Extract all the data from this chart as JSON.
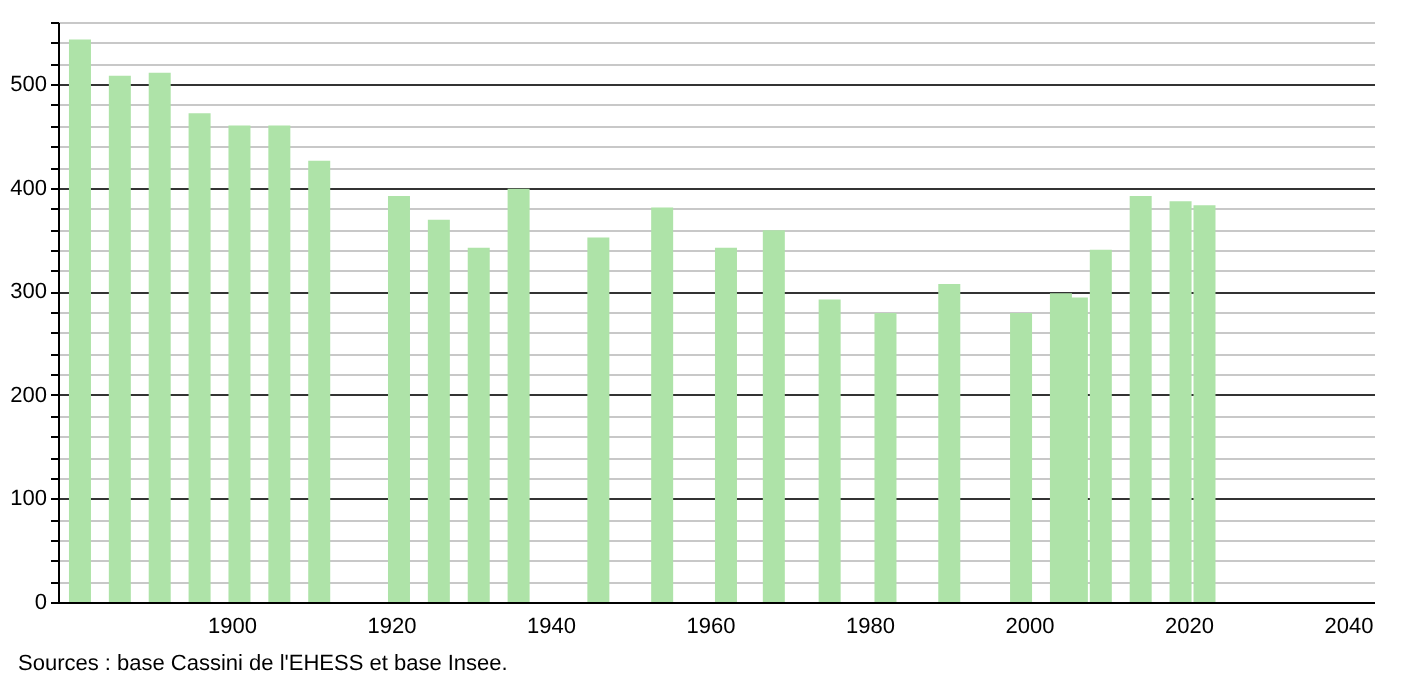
{
  "chart_data": {
    "type": "bar",
    "x": [
      1881,
      1886,
      1891,
      1896,
      1901,
      1906,
      1911,
      1921,
      1926,
      1931,
      1936,
      1946,
      1954,
      1962,
      1968,
      1975,
      1982,
      1990,
      1999,
      2004,
      2006,
      2009,
      2014,
      2019,
      2022
    ],
    "values": [
      543,
      508,
      511,
      472,
      460,
      460,
      426,
      392,
      369,
      342,
      399,
      352,
      381,
      342,
      359,
      292,
      279,
      307,
      279,
      298,
      294,
      340,
      392,
      387,
      383
    ],
    "color": "#aee3a8",
    "xlim": [
      1879.5,
      2042
    ],
    "xticks": [
      1900,
      1920,
      1940,
      1960,
      1980,
      2000,
      2020,
      2040
    ],
    "ylim": [
      0,
      560
    ],
    "yticks": [
      0,
      {
        "value": 20,
        "label": null
      },
      {
        "value": 40,
        "label": null
      },
      {
        "value": 60,
        "label": null
      },
      {
        "value": 80,
        "label": null
      },
      100,
      {
        "value": 120,
        "label": null
      },
      {
        "value": 140,
        "label": null
      },
      {
        "value": 160,
        "label": null
      },
      {
        "value": 180,
        "label": null
      },
      200,
      {
        "value": 220,
        "label": null
      },
      {
        "value": 240,
        "label": null
      },
      {
        "value": 260,
        "label": null
      },
      {
        "value": 280,
        "label": null
      },
      300,
      {
        "value": 320,
        "label": null
      },
      {
        "value": 340,
        "label": null
      },
      {
        "value": 360,
        "label": null
      },
      {
        "value": 380,
        "label": null
      },
      400,
      {
        "value": 420,
        "label": null
      },
      {
        "value": 440,
        "label": null
      },
      {
        "value": 460,
        "label": null
      },
      {
        "value": 480,
        "label": null
      },
      500,
      {
        "value": 520,
        "label": null
      },
      {
        "value": 540,
        "label": null
      },
      {
        "value": 560,
        "label": null
      }
    ],
    "grid": "y",
    "annotations": [
      "Sources : base Cassini de l'EHESS et base Insee."
    ]
  }
}
